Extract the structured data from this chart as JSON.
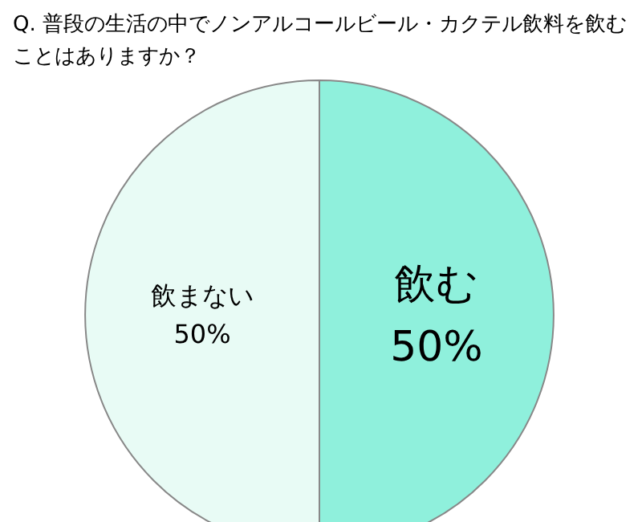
{
  "chart_data": {
    "type": "pie",
    "title": "Q. 普段の生活の中でノンアルコールビール・カクテル飲料を飲むことはありますか？",
    "categories": [
      "飲む",
      "飲まない"
    ],
    "values": [
      50,
      50
    ],
    "colors": [
      "#8ff0dc",
      "#e8fbf5"
    ],
    "value_labels": [
      "50%",
      "50%"
    ]
  }
}
